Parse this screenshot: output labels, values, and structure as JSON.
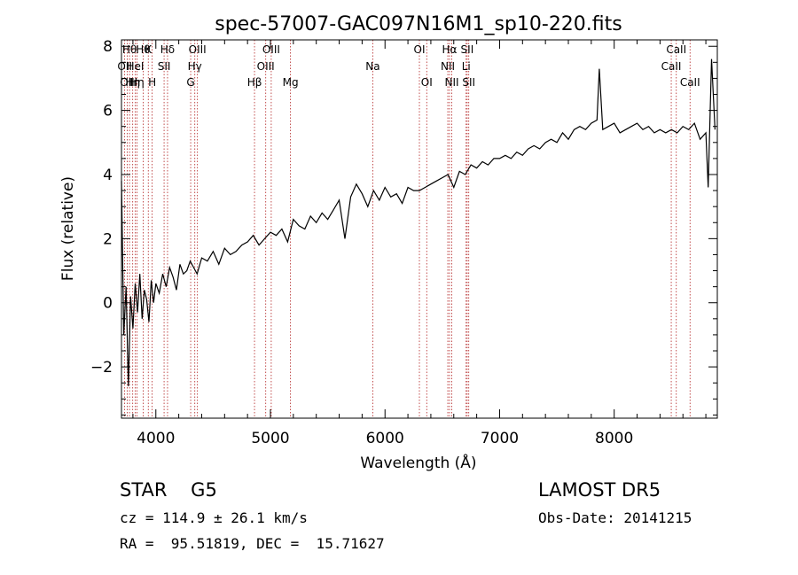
{
  "chart_data": {
    "type": "line",
    "title": "spec-57007-GAC097N16M1_sp10-220.fits",
    "xlabel": "Wavelength (Å)",
    "ylabel": "Flux (relative)",
    "xlim": [
      3700,
      8900
    ],
    "ylim": [
      -3.6,
      8.2
    ],
    "xticks": [
      4000,
      5000,
      6000,
      7000,
      8000
    ],
    "yticks": [
      -2,
      0,
      2,
      4,
      6,
      8
    ],
    "series": [
      {
        "x": [
          3700,
          3720,
          3740,
          3760,
          3780,
          3800,
          3820,
          3840,
          3860,
          3880,
          3900,
          3920,
          3940,
          3960,
          3980,
          4000,
          4030,
          4060,
          4090,
          4120,
          4150,
          4180,
          4210,
          4240,
          4270,
          4300,
          4330,
          4360,
          4400,
          4450,
          4500,
          4550,
          4600,
          4650,
          4700,
          4750,
          4800,
          4850,
          4900,
          4950,
          5000,
          5050,
          5100,
          5150,
          5200,
          5250,
          5300,
          5350,
          5400,
          5450,
          5500,
          5550,
          5600,
          5650,
          5700,
          5750,
          5800,
          5850,
          5900,
          5950,
          6000,
          6050,
          6100,
          6150,
          6200,
          6250,
          6300,
          6350,
          6400,
          6450,
          6500,
          6550,
          6600,
          6650,
          6700,
          6750,
          6800,
          6850,
          6900,
          6950,
          7000,
          7050,
          7100,
          7150,
          7200,
          7250,
          7300,
          7350,
          7400,
          7450,
          7500,
          7550,
          7600,
          7650,
          7700,
          7750,
          7800,
          7850,
          7870,
          7900,
          7950,
          8000,
          8050,
          8100,
          8150,
          8200,
          8250,
          8300,
          8350,
          8400,
          8450,
          8500,
          8550,
          8600,
          8650,
          8700,
          8750,
          8800,
          8820,
          8850,
          8880
        ],
        "y": [
          3.8,
          -1.0,
          0.5,
          -2.6,
          0.2,
          -0.8,
          0.6,
          -0.3,
          0.9,
          -0.5,
          0.4,
          0.1,
          -0.6,
          0.7,
          0.0,
          0.6,
          0.3,
          0.9,
          0.5,
          1.1,
          0.8,
          0.4,
          1.2,
          0.9,
          1.0,
          1.3,
          1.1,
          0.9,
          1.4,
          1.3,
          1.6,
          1.2,
          1.7,
          1.5,
          1.6,
          1.8,
          1.9,
          2.1,
          1.8,
          2.0,
          2.2,
          2.1,
          2.3,
          1.9,
          2.6,
          2.4,
          2.3,
          2.7,
          2.5,
          2.8,
          2.6,
          2.9,
          3.2,
          2.0,
          3.3,
          3.7,
          3.4,
          3.0,
          3.5,
          3.2,
          3.6,
          3.3,
          3.4,
          3.1,
          3.6,
          3.5,
          3.5,
          3.6,
          3.7,
          3.8,
          3.9,
          4.0,
          3.6,
          4.1,
          4.0,
          4.3,
          4.2,
          4.4,
          4.3,
          4.5,
          4.5,
          4.6,
          4.5,
          4.7,
          4.6,
          4.8,
          4.9,
          4.8,
          5.0,
          5.1,
          5.0,
          5.3,
          5.1,
          5.4,
          5.5,
          5.4,
          5.6,
          5.7,
          7.3,
          5.4,
          5.5,
          5.6,
          5.3,
          5.4,
          5.5,
          5.6,
          5.4,
          5.5,
          5.3,
          5.4,
          5.3,
          5.4,
          5.3,
          5.5,
          5.4,
          5.6,
          5.1,
          5.3,
          3.6,
          7.6,
          5.4
        ]
      }
    ],
    "lines": [
      {
        "x": 3728,
        "label": "OII",
        "row": 1
      },
      {
        "x": 3750,
        "label": "OII",
        "row": 2
      },
      {
        "x": 3770,
        "label": "Hθ",
        "row": 0
      },
      {
        "x": 3798,
        "label": "Hη",
        "row": 2
      },
      {
        "x": 3820,
        "label": "HeI",
        "row": 1
      },
      {
        "x": 3835,
        "label": "Hη",
        "row": 2
      },
      {
        "x": 3889,
        "label": "Hθ",
        "row": 0
      },
      {
        "x": 3934,
        "label": "K",
        "row": 0
      },
      {
        "x": 3968,
        "label": "H",
        "row": 2
      },
      {
        "x": 4072,
        "label": "SII",
        "row": 1
      },
      {
        "x": 4102,
        "label": "Hδ",
        "row": 0
      },
      {
        "x": 4304,
        "label": "G",
        "row": 2
      },
      {
        "x": 4340,
        "label": "Hγ",
        "row": 1
      },
      {
        "x": 4363,
        "label": "OIII",
        "row": 0
      },
      {
        "x": 4861,
        "label": "Hβ",
        "row": 2
      },
      {
        "x": 4959,
        "label": "OIII",
        "row": 1
      },
      {
        "x": 5007,
        "label": "OIII",
        "row": 0
      },
      {
        "x": 5175,
        "label": "Mg",
        "row": 2
      },
      {
        "x": 5893,
        "label": "Na",
        "row": 1
      },
      {
        "x": 6300,
        "label": "OI",
        "row": 0
      },
      {
        "x": 6364,
        "label": "OI",
        "row": 2
      },
      {
        "x": 6548,
        "label": "NII",
        "row": 1
      },
      {
        "x": 6563,
        "label": "Hα",
        "row": 0
      },
      {
        "x": 6583,
        "label": "NII",
        "row": 2
      },
      {
        "x": 6708,
        "label": "Li",
        "row": 1
      },
      {
        "x": 6717,
        "label": "SII",
        "row": 0
      },
      {
        "x": 6731,
        "label": "SII",
        "row": 2
      },
      {
        "x": 8498,
        "label": "CaII",
        "row": 1
      },
      {
        "x": 8542,
        "label": "CaII",
        "row": 0
      },
      {
        "x": 8662,
        "label": "CaII",
        "row": 2
      }
    ],
    "grid": false
  },
  "info": {
    "classification": "STAR    G5",
    "survey": "LAMOST DR5",
    "redshift": "cz = 114.9 ± 26.1 km/s",
    "obs_date": "Obs-Date: 20141215",
    "coords": "RA =  95.51819, DEC =  15.71627"
  },
  "colors": {
    "line_marker": "#b22222",
    "spectrum": "#000000"
  }
}
